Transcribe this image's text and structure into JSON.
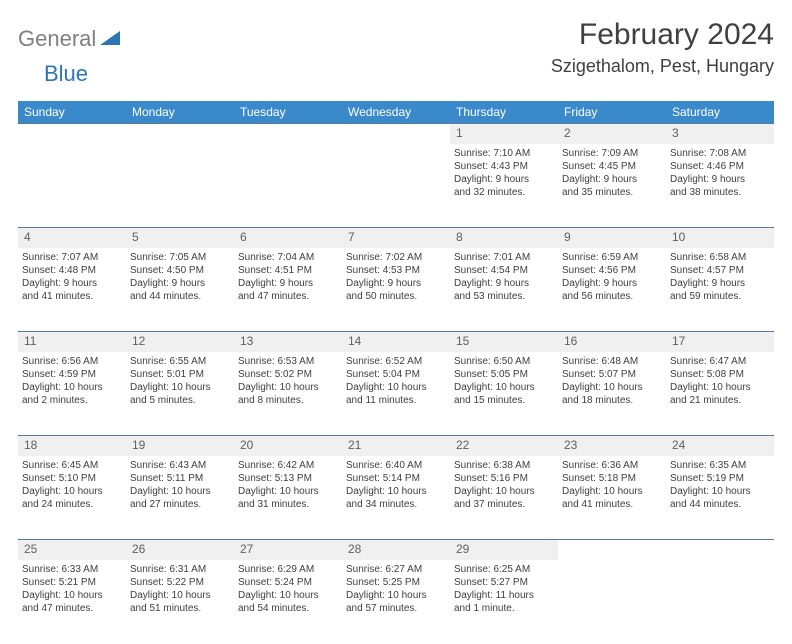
{
  "logo": {
    "gray": "General",
    "blue": "Blue"
  },
  "title": "February 2024",
  "location": "Szigethalom, Pest, Hungary",
  "colors": {
    "header_bg": "#3a8acb",
    "header_text": "#ffffff",
    "daynum_bg": "#f0f0f0",
    "border": "#5a7a9a",
    "text": "#404040",
    "logo_gray": "#808080",
    "logo_blue": "#2e75b6"
  },
  "weekdays": [
    "Sunday",
    "Monday",
    "Tuesday",
    "Wednesday",
    "Thursday",
    "Friday",
    "Saturday"
  ],
  "weeks": [
    {
      "nums": [
        "",
        "",
        "",
        "",
        "1",
        "2",
        "3"
      ],
      "cells": [
        {
          "sunrise": "",
          "sunset": "",
          "daylight1": "",
          "daylight2": ""
        },
        {
          "sunrise": "",
          "sunset": "",
          "daylight1": "",
          "daylight2": ""
        },
        {
          "sunrise": "",
          "sunset": "",
          "daylight1": "",
          "daylight2": ""
        },
        {
          "sunrise": "",
          "sunset": "",
          "daylight1": "",
          "daylight2": ""
        },
        {
          "sunrise": "Sunrise: 7:10 AM",
          "sunset": "Sunset: 4:43 PM",
          "daylight1": "Daylight: 9 hours",
          "daylight2": "and 32 minutes."
        },
        {
          "sunrise": "Sunrise: 7:09 AM",
          "sunset": "Sunset: 4:45 PM",
          "daylight1": "Daylight: 9 hours",
          "daylight2": "and 35 minutes."
        },
        {
          "sunrise": "Sunrise: 7:08 AM",
          "sunset": "Sunset: 4:46 PM",
          "daylight1": "Daylight: 9 hours",
          "daylight2": "and 38 minutes."
        }
      ]
    },
    {
      "nums": [
        "4",
        "5",
        "6",
        "7",
        "8",
        "9",
        "10"
      ],
      "cells": [
        {
          "sunrise": "Sunrise: 7:07 AM",
          "sunset": "Sunset: 4:48 PM",
          "daylight1": "Daylight: 9 hours",
          "daylight2": "and 41 minutes."
        },
        {
          "sunrise": "Sunrise: 7:05 AM",
          "sunset": "Sunset: 4:50 PM",
          "daylight1": "Daylight: 9 hours",
          "daylight2": "and 44 minutes."
        },
        {
          "sunrise": "Sunrise: 7:04 AM",
          "sunset": "Sunset: 4:51 PM",
          "daylight1": "Daylight: 9 hours",
          "daylight2": "and 47 minutes."
        },
        {
          "sunrise": "Sunrise: 7:02 AM",
          "sunset": "Sunset: 4:53 PM",
          "daylight1": "Daylight: 9 hours",
          "daylight2": "and 50 minutes."
        },
        {
          "sunrise": "Sunrise: 7:01 AM",
          "sunset": "Sunset: 4:54 PM",
          "daylight1": "Daylight: 9 hours",
          "daylight2": "and 53 minutes."
        },
        {
          "sunrise": "Sunrise: 6:59 AM",
          "sunset": "Sunset: 4:56 PM",
          "daylight1": "Daylight: 9 hours",
          "daylight2": "and 56 minutes."
        },
        {
          "sunrise": "Sunrise: 6:58 AM",
          "sunset": "Sunset: 4:57 PM",
          "daylight1": "Daylight: 9 hours",
          "daylight2": "and 59 minutes."
        }
      ]
    },
    {
      "nums": [
        "11",
        "12",
        "13",
        "14",
        "15",
        "16",
        "17"
      ],
      "cells": [
        {
          "sunrise": "Sunrise: 6:56 AM",
          "sunset": "Sunset: 4:59 PM",
          "daylight1": "Daylight: 10 hours",
          "daylight2": "and 2 minutes."
        },
        {
          "sunrise": "Sunrise: 6:55 AM",
          "sunset": "Sunset: 5:01 PM",
          "daylight1": "Daylight: 10 hours",
          "daylight2": "and 5 minutes."
        },
        {
          "sunrise": "Sunrise: 6:53 AM",
          "sunset": "Sunset: 5:02 PM",
          "daylight1": "Daylight: 10 hours",
          "daylight2": "and 8 minutes."
        },
        {
          "sunrise": "Sunrise: 6:52 AM",
          "sunset": "Sunset: 5:04 PM",
          "daylight1": "Daylight: 10 hours",
          "daylight2": "and 11 minutes."
        },
        {
          "sunrise": "Sunrise: 6:50 AM",
          "sunset": "Sunset: 5:05 PM",
          "daylight1": "Daylight: 10 hours",
          "daylight2": "and 15 minutes."
        },
        {
          "sunrise": "Sunrise: 6:48 AM",
          "sunset": "Sunset: 5:07 PM",
          "daylight1": "Daylight: 10 hours",
          "daylight2": "and 18 minutes."
        },
        {
          "sunrise": "Sunrise: 6:47 AM",
          "sunset": "Sunset: 5:08 PM",
          "daylight1": "Daylight: 10 hours",
          "daylight2": "and 21 minutes."
        }
      ]
    },
    {
      "nums": [
        "18",
        "19",
        "20",
        "21",
        "22",
        "23",
        "24"
      ],
      "cells": [
        {
          "sunrise": "Sunrise: 6:45 AM",
          "sunset": "Sunset: 5:10 PM",
          "daylight1": "Daylight: 10 hours",
          "daylight2": "and 24 minutes."
        },
        {
          "sunrise": "Sunrise: 6:43 AM",
          "sunset": "Sunset: 5:11 PM",
          "daylight1": "Daylight: 10 hours",
          "daylight2": "and 27 minutes."
        },
        {
          "sunrise": "Sunrise: 6:42 AM",
          "sunset": "Sunset: 5:13 PM",
          "daylight1": "Daylight: 10 hours",
          "daylight2": "and 31 minutes."
        },
        {
          "sunrise": "Sunrise: 6:40 AM",
          "sunset": "Sunset: 5:14 PM",
          "daylight1": "Daylight: 10 hours",
          "daylight2": "and 34 minutes."
        },
        {
          "sunrise": "Sunrise: 6:38 AM",
          "sunset": "Sunset: 5:16 PM",
          "daylight1": "Daylight: 10 hours",
          "daylight2": "and 37 minutes."
        },
        {
          "sunrise": "Sunrise: 6:36 AM",
          "sunset": "Sunset: 5:18 PM",
          "daylight1": "Daylight: 10 hours",
          "daylight2": "and 41 minutes."
        },
        {
          "sunrise": "Sunrise: 6:35 AM",
          "sunset": "Sunset: 5:19 PM",
          "daylight1": "Daylight: 10 hours",
          "daylight2": "and 44 minutes."
        }
      ]
    },
    {
      "nums": [
        "25",
        "26",
        "27",
        "28",
        "29",
        "",
        ""
      ],
      "cells": [
        {
          "sunrise": "Sunrise: 6:33 AM",
          "sunset": "Sunset: 5:21 PM",
          "daylight1": "Daylight: 10 hours",
          "daylight2": "and 47 minutes."
        },
        {
          "sunrise": "Sunrise: 6:31 AM",
          "sunset": "Sunset: 5:22 PM",
          "daylight1": "Daylight: 10 hours",
          "daylight2": "and 51 minutes."
        },
        {
          "sunrise": "Sunrise: 6:29 AM",
          "sunset": "Sunset: 5:24 PM",
          "daylight1": "Daylight: 10 hours",
          "daylight2": "and 54 minutes."
        },
        {
          "sunrise": "Sunrise: 6:27 AM",
          "sunset": "Sunset: 5:25 PM",
          "daylight1": "Daylight: 10 hours",
          "daylight2": "and 57 minutes."
        },
        {
          "sunrise": "Sunrise: 6:25 AM",
          "sunset": "Sunset: 5:27 PM",
          "daylight1": "Daylight: 11 hours",
          "daylight2": "and 1 minute."
        },
        {
          "sunrise": "",
          "sunset": "",
          "daylight1": "",
          "daylight2": ""
        },
        {
          "sunrise": "",
          "sunset": "",
          "daylight1": "",
          "daylight2": ""
        }
      ]
    }
  ]
}
